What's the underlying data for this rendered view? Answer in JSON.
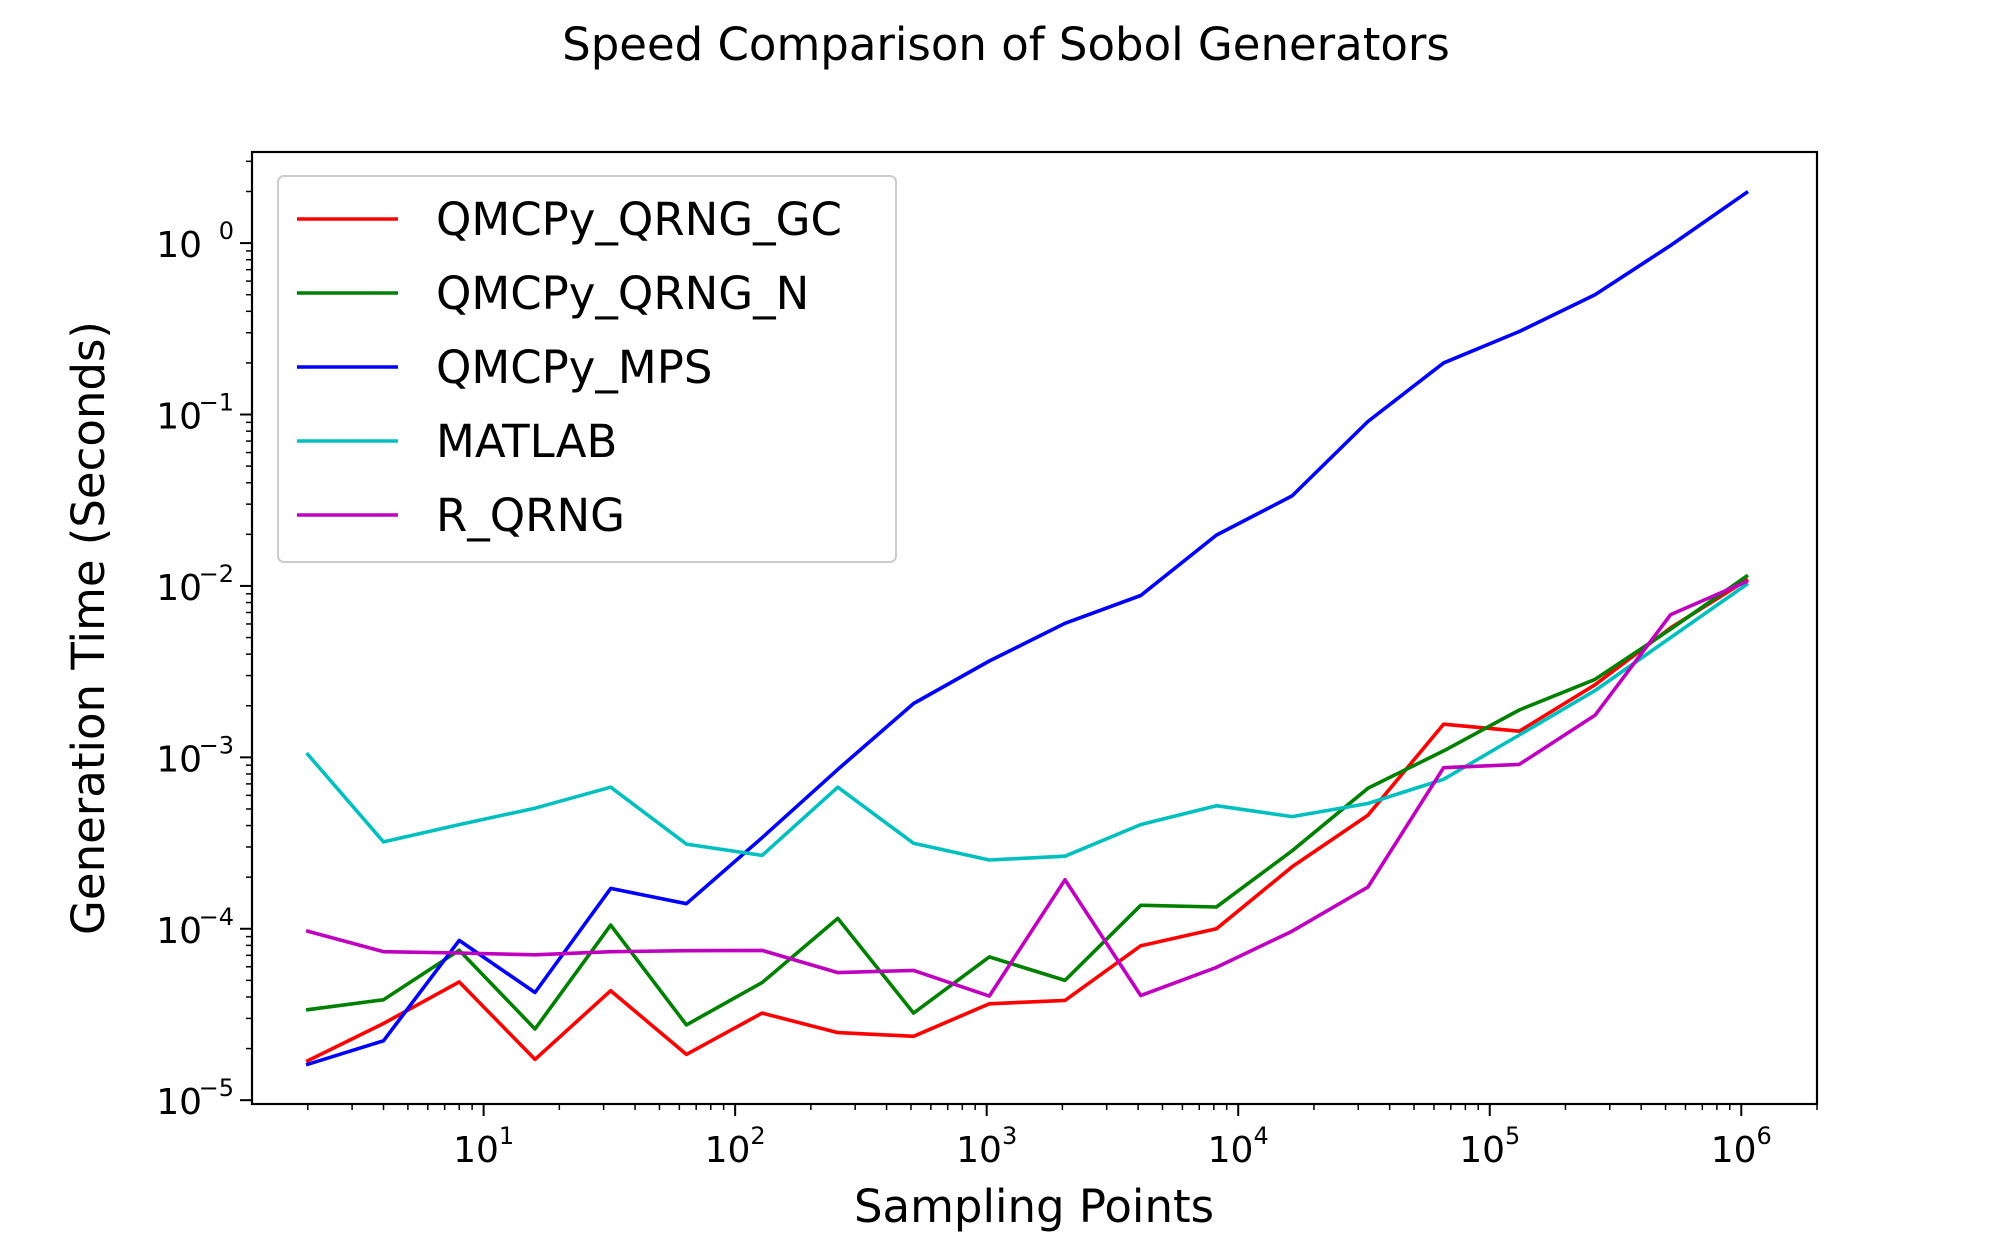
{
  "chart_data": {
    "type": "line",
    "title": "Speed Comparison of Sobol Generators",
    "xlabel": "Sampling Points",
    "ylabel": "Generation Time (Seconds)",
    "xscale": "log",
    "yscale": "log",
    "xlim": [
      1.2,
      2000000
    ],
    "ylim": [
      9.5e-06,
      3.4
    ],
    "x_ticks": [
      {
        "value": 10,
        "base": "10",
        "exp": "1"
      },
      {
        "value": 100,
        "base": "10",
        "exp": "2"
      },
      {
        "value": 1000,
        "base": "10",
        "exp": "3"
      },
      {
        "value": 10000,
        "base": "10",
        "exp": "4"
      },
      {
        "value": 100000,
        "base": "10",
        "exp": "5"
      },
      {
        "value": 1000000,
        "base": "10",
        "exp": "6"
      }
    ],
    "y_ticks": [
      {
        "value": 1e-05,
        "base": "10",
        "exp": "−5"
      },
      {
        "value": 0.0001,
        "base": "10",
        "exp": "−4"
      },
      {
        "value": 0.001,
        "base": "10",
        "exp": "−3"
      },
      {
        "value": 0.01,
        "base": "10",
        "exp": "−2"
      },
      {
        "value": 0.1,
        "base": "10",
        "exp": "−1"
      },
      {
        "value": 1,
        "base": "10",
        "exp": "0"
      }
    ],
    "grid": false,
    "legend_position": "upper-left",
    "x": [
      2,
      4,
      8,
      16,
      32,
      64,
      128,
      256,
      512,
      1024,
      2048,
      4096,
      8192,
      16384,
      32768,
      65536,
      131072,
      262144,
      524288,
      1048576
    ],
    "series": [
      {
        "name": "QMCPy_QRNG_GC",
        "color": "#ff0000",
        "values": [
          1.7e-05,
          2.8e-05,
          4.9e-05,
          1.73e-05,
          4.35e-05,
          1.85e-05,
          3.22e-05,
          2.48e-05,
          2.36e-05,
          3.65e-05,
          3.82e-05,
          7.95e-05,
          0.0001,
          0.00023,
          0.00046,
          0.00156,
          0.00142,
          0.00265,
          0.0057,
          0.0108
        ]
      },
      {
        "name": "QMCPy_QRNG_N",
        "color": "#008000",
        "values": [
          3.37e-05,
          3.85e-05,
          7.5e-05,
          2.6e-05,
          0.000105,
          2.75e-05,
          4.85e-05,
          0.000115,
          3.22e-05,
          6.85e-05,
          5e-05,
          0.000137,
          0.000134,
          0.000285,
          0.00066,
          0.00109,
          0.00189,
          0.00285,
          0.0056,
          0.0114
        ]
      },
      {
        "name": "QMCPy_MPS",
        "color": "#0000ff",
        "values": [
          1.62e-05,
          2.22e-05,
          8.55e-05,
          4.25e-05,
          0.000172,
          0.00014,
          0.00034,
          0.00085,
          0.00206,
          0.00365,
          0.00605,
          0.0088,
          0.0198,
          0.0335,
          0.091,
          0.2,
          0.305,
          0.5,
          0.97,
          1.97
        ]
      },
      {
        "name": "MATLAB",
        "color": "#00bfbf",
        "values": [
          0.00104,
          0.000321,
          0.000405,
          0.000505,
          0.00067,
          0.000312,
          0.000268,
          0.00067,
          0.000315,
          0.000252,
          0.000265,
          0.000405,
          0.000522,
          0.000451,
          0.000538,
          0.000745,
          0.00135,
          0.00245,
          0.005,
          0.0102
        ]
      },
      {
        "name": "R_QRNG",
        "color": "#bf00bf",
        "values": [
          9.68e-05,
          7.35e-05,
          7.22e-05,
          7.05e-05,
          7.35e-05,
          7.45e-05,
          7.48e-05,
          5.55e-05,
          5.72e-05,
          4.05e-05,
          0.000193,
          4.08e-05,
          5.95e-05,
          9.68e-05,
          0.000175,
          0.00087,
          0.00091,
          0.00176,
          0.0068,
          0.0106
        ]
      }
    ]
  }
}
